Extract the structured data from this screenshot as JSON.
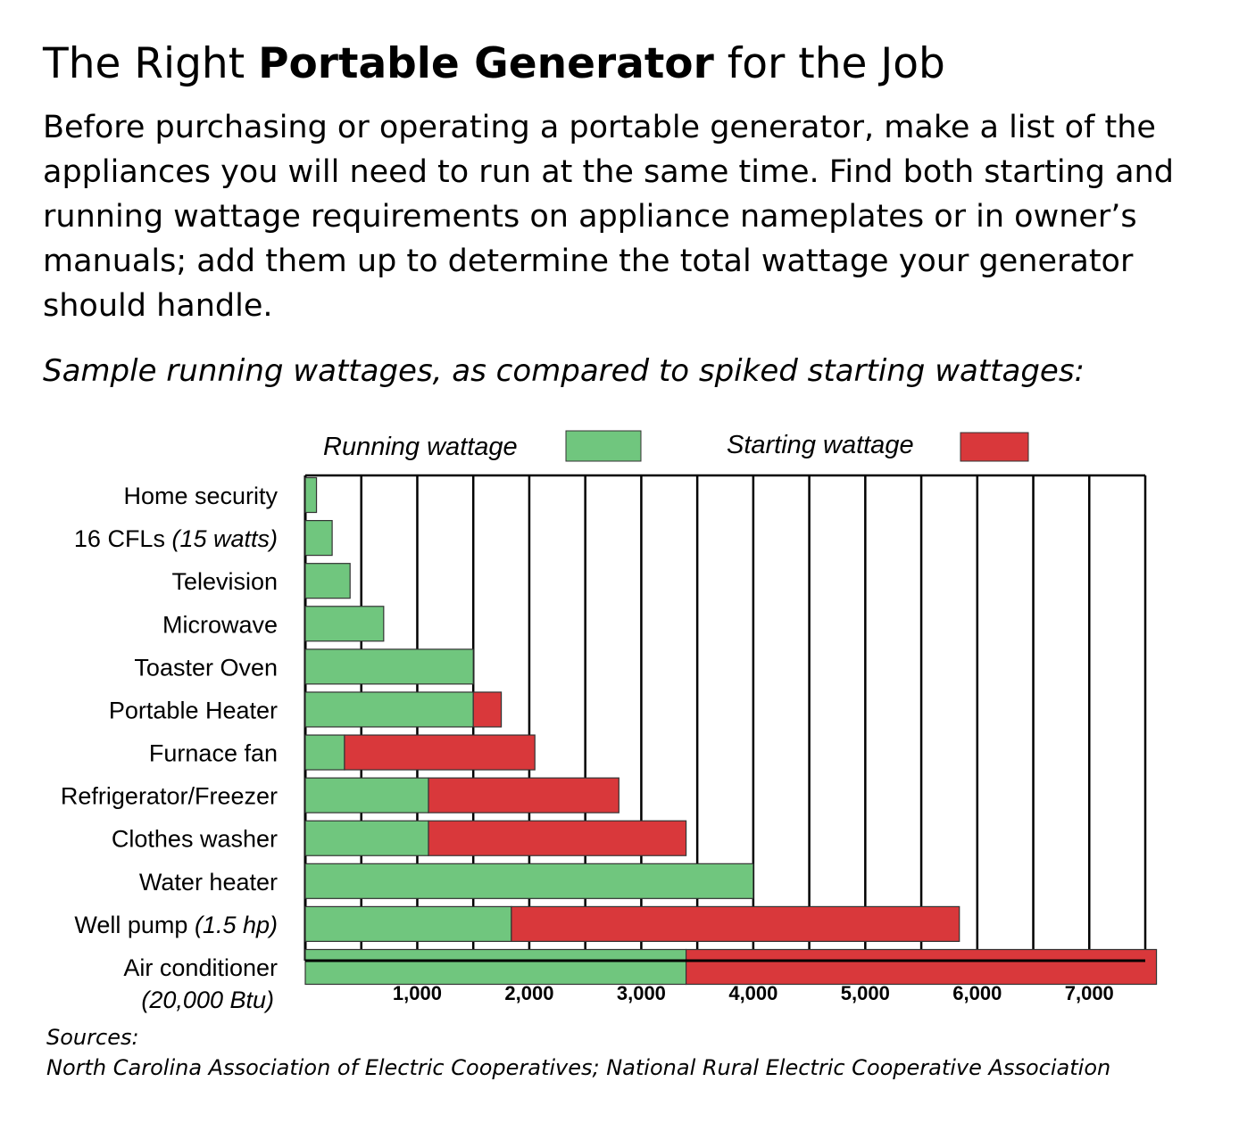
{
  "heading": {
    "prefix": "The Right ",
    "bold": "Portable Generator",
    "suffix": " for the Job"
  },
  "intro": "Before purchasing or operating a portable generator, make a list of the appliances you will need to run at the same time.  Find both starting and running wattage requirements on appliance nameplates or in owner’s manuals; add them up to determine the total wattage your generator should handle.",
  "subtitle": "Sample running wattages, as compared to spiked starting wattages:",
  "sources": {
    "label": "Sources:",
    "text": "North Carolina Association of Electric Cooperatives; National Rural Electric Cooperative Association"
  },
  "colors": {
    "running": "#70c67e",
    "starting": "#d9383b",
    "outline": "#000000"
  },
  "chart_data": {
    "type": "bar",
    "orientation": "horizontal",
    "stacked": true,
    "title": "",
    "xlabel": "",
    "ylabel": "",
    "xlim": [
      0,
      7500
    ],
    "x_ticks": [
      500,
      1000,
      1500,
      2000,
      2500,
      3000,
      3500,
      4000,
      4500,
      5000,
      5500,
      6000,
      6500,
      7000,
      7500
    ],
    "x_tick_labels": [
      {
        "value": 1000,
        "label": "1,000"
      },
      {
        "value": 2000,
        "label": "2,000"
      },
      {
        "value": 3000,
        "label": "3,000"
      },
      {
        "value": 4000,
        "label": "4,000"
      },
      {
        "value": 5000,
        "label": "5,000"
      },
      {
        "value": 6000,
        "label": "6,000"
      },
      {
        "value": 7000,
        "label": "7,000"
      }
    ],
    "legend": {
      "placement": "top",
      "entries": [
        "Running wattage",
        "Starting wattage"
      ]
    },
    "categories": [
      {
        "main": "Home security",
        "note": ""
      },
      {
        "main": "16 CFLs ",
        "note": "(15 watts)"
      },
      {
        "main": "Television",
        "note": ""
      },
      {
        "main": "Microwave",
        "note": ""
      },
      {
        "main": "Toaster Oven",
        "note": ""
      },
      {
        "main": "Portable Heater",
        "note": ""
      },
      {
        "main": "Furnace fan",
        "note": ""
      },
      {
        "main": "Refrigerator/Freezer",
        "note": ""
      },
      {
        "main": "Clothes washer",
        "note": ""
      },
      {
        "main": "Water heater",
        "note": ""
      },
      {
        "main": "Well pump ",
        "note": "(1.5 hp)"
      },
      {
        "main": "Air conditioner",
        "note": "(20,000 Btu)"
      }
    ],
    "series": [
      {
        "name": "Running wattage",
        "values": [
          100,
          240,
          400,
          700,
          1500,
          1500,
          350,
          1100,
          1100,
          4000,
          1840,
          3400
        ]
      },
      {
        "name": "Starting wattage",
        "values": [
          0,
          0,
          0,
          0,
          0,
          250,
          1700,
          1700,
          2300,
          0,
          4000,
          4200
        ]
      }
    ]
  }
}
